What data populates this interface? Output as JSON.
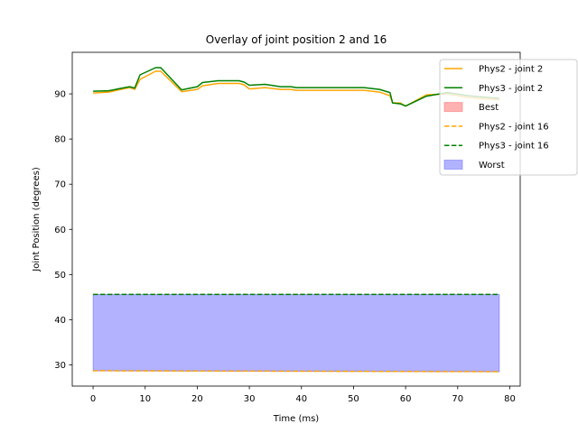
{
  "chart_data": {
    "type": "line",
    "title": "Overlay of joint position 2 and 16",
    "xlabel": "Time (ms)",
    "ylabel": "Joint Position (degrees)",
    "xlim": [
      -4,
      82
    ],
    "ylim": [
      25.3,
      99.2
    ],
    "xticks": [
      0,
      10,
      20,
      30,
      40,
      50,
      60,
      70,
      80
    ],
    "yticks": [
      30,
      40,
      50,
      60,
      70,
      80,
      90
    ],
    "grid": false,
    "legend_position": "top-right",
    "series": [
      {
        "name": "Phys2 - joint 2",
        "color": "#ffa500",
        "style": "solid",
        "x": [
          0,
          3,
          7,
          8,
          9,
          12,
          13,
          17,
          20,
          21,
          24,
          28,
          29,
          30,
          33,
          36,
          38,
          39,
          45,
          52,
          55,
          57,
          57.5,
          59,
          60,
          64,
          68,
          72,
          78
        ],
        "y": [
          90.2,
          90.4,
          91.4,
          91.0,
          93.2,
          95.0,
          95.0,
          90.5,
          91.0,
          91.8,
          92.3,
          92.3,
          92.0,
          91.1,
          91.4,
          91.0,
          91.0,
          90.8,
          90.8,
          90.8,
          90.4,
          89.6,
          88.0,
          88.0,
          87.3,
          89.8,
          90.0,
          89.2,
          88.7
        ]
      },
      {
        "name": "Phys3 - joint 2",
        "color": "#008000",
        "style": "solid",
        "x": [
          0,
          3,
          7,
          8,
          9,
          12,
          13,
          17,
          20,
          21,
          24,
          28,
          29,
          30,
          33,
          36,
          38,
          39,
          45,
          52,
          55,
          57,
          57.5,
          59,
          60,
          64,
          68,
          72,
          78
        ],
        "y": [
          90.6,
          90.7,
          91.6,
          91.3,
          94.2,
          95.8,
          95.8,
          90.9,
          91.6,
          92.5,
          92.9,
          92.9,
          92.6,
          91.9,
          92.1,
          91.6,
          91.6,
          91.4,
          91.4,
          91.4,
          91.0,
          90.3,
          88.0,
          87.8,
          87.3,
          89.5,
          90.3,
          89.6,
          89.0
        ]
      },
      {
        "name": "Phys2 - joint 16",
        "color": "#ffa500",
        "style": "dashed",
        "x": [
          0,
          78
        ],
        "y": [
          28.7,
          28.5
        ]
      },
      {
        "name": "Phys3 - joint 16",
        "color": "#008000",
        "style": "dashed",
        "x": [
          0,
          78
        ],
        "y": [
          45.6,
          45.6
        ]
      }
    ],
    "fills": [
      {
        "name": "Best",
        "color": "#ff6666",
        "opacity": 0.5,
        "x": [
          0,
          78
        ],
        "lower": [
          28.7,
          28.5
        ],
        "upper": [
          28.7,
          28.5
        ]
      },
      {
        "name": "Worst",
        "color": "#6666ff",
        "opacity": 0.5,
        "x": [
          0,
          78
        ],
        "lower": [
          28.7,
          28.5
        ],
        "upper": [
          45.6,
          45.6
        ]
      }
    ],
    "legend": [
      {
        "label": "Phys2 - joint 2",
        "kind": "line",
        "color": "#ffa500",
        "style": "solid"
      },
      {
        "label": "Phys3 - joint 2",
        "kind": "line",
        "color": "#008000",
        "style": "solid"
      },
      {
        "label": "Best",
        "kind": "patch",
        "color": "#ff6666"
      },
      {
        "label": "Phys2 - joint 16",
        "kind": "line",
        "color": "#ffa500",
        "style": "dashed"
      },
      {
        "label": "Phys3 - joint 16",
        "kind": "line",
        "color": "#008000",
        "style": "dashed"
      },
      {
        "label": "Worst",
        "kind": "patch",
        "color": "#6666ff"
      }
    ]
  }
}
